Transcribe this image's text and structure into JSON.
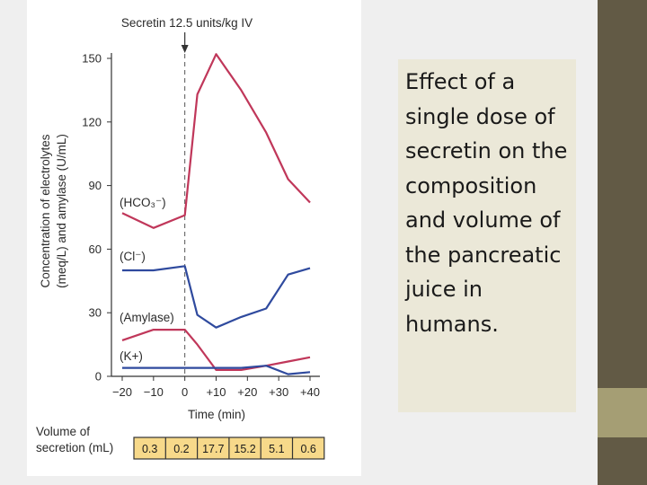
{
  "caption": "Effect of a single dose of secretin on the composition and volume of the pancreatic juice in humans.",
  "colors": {
    "red_series": "#c0375a",
    "blue_series": "#2f4a9e",
    "table_fill": "#f7d98a"
  },
  "chart_data": {
    "type": "line",
    "annotation": "Secretin 12.5 units/kg IV",
    "annotation_x": 0,
    "x": [
      -20,
      -10,
      0,
      5,
      10,
      15,
      20,
      25,
      30,
      35,
      40
    ],
    "ylim": [
      0,
      150
    ],
    "xlim": [
      -20,
      40
    ],
    "yticks": [
      0,
      30,
      60,
      90,
      120,
      150
    ],
    "xticks": [
      -20,
      -10,
      0,
      10,
      20,
      30,
      40
    ],
    "xtick_labels": [
      "−20",
      "−10",
      "0",
      "+10",
      "+20",
      "+30",
      "+40"
    ],
    "ylabel_line1": "Concentration of electrolytes",
    "ylabel_line2": "(meq/L) and amylase (U/mL)",
    "xlabel": "Time (min)",
    "series": [
      {
        "name": "HCO3−",
        "label": "(HCO₃⁻)",
        "color": "red",
        "x": [
          -20,
          -10,
          0,
          4,
          10,
          18,
          26,
          33,
          40
        ],
        "values": [
          77,
          70,
          76,
          133,
          152,
          135,
          115,
          93,
          82
        ]
      },
      {
        "name": "Cl−",
        "label": "(Cl⁻)",
        "color": "blue",
        "x": [
          -20,
          -10,
          0,
          4,
          10,
          18,
          26,
          33,
          40
        ],
        "values": [
          50,
          50,
          52,
          29,
          23,
          28,
          32,
          48,
          51
        ]
      },
      {
        "name": "Amylase",
        "label": "(Amylase)",
        "color": "red",
        "x": [
          -20,
          -10,
          0,
          4,
          10,
          18,
          26,
          33,
          40
        ],
        "values": [
          17,
          22,
          22,
          15,
          3,
          3,
          5,
          7,
          9
        ]
      },
      {
        "name": "K+",
        "label": "(K+)",
        "color": "blue",
        "x": [
          -20,
          -10,
          0,
          4,
          10,
          18,
          26,
          33,
          40
        ],
        "values": [
          4,
          4,
          4,
          4,
          4,
          4,
          5,
          1,
          2
        ]
      }
    ],
    "volume_table": {
      "label_line1": "Volume of",
      "label_line2": "secretion (mL)",
      "values": [
        "0.3",
        "0.2",
        "17.7",
        "15.2",
        "5.1",
        "0.6"
      ]
    }
  }
}
